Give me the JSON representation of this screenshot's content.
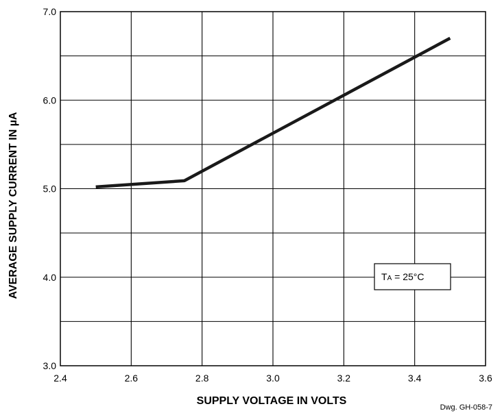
{
  "chart_data": {
    "type": "line",
    "title": "",
    "xlabel": "SUPPLY VOLTAGE IN VOLTS",
    "ylabel": "AVERAGE SUPPLY CURRENT IN µA",
    "xlim": [
      2.4,
      3.6
    ],
    "ylim": [
      3.0,
      7.0
    ],
    "x_ticks": [
      "2.4",
      "2.6",
      "2.8",
      "3.0",
      "3.2",
      "3.4",
      "3.6"
    ],
    "y_ticks": [
      "3.0",
      "4.0",
      "5.0",
      "6.0",
      "7.0"
    ],
    "grid": true,
    "series": [
      {
        "x": [
          2.5,
          2.75,
          3.5
        ],
        "y": [
          5.02,
          5.09,
          6.7
        ]
      }
    ],
    "annotations": {
      "condition_sub": "A",
      "condition_rest": " = 25°C"
    },
    "drawing_number": "Dwg. GH-058-7"
  }
}
